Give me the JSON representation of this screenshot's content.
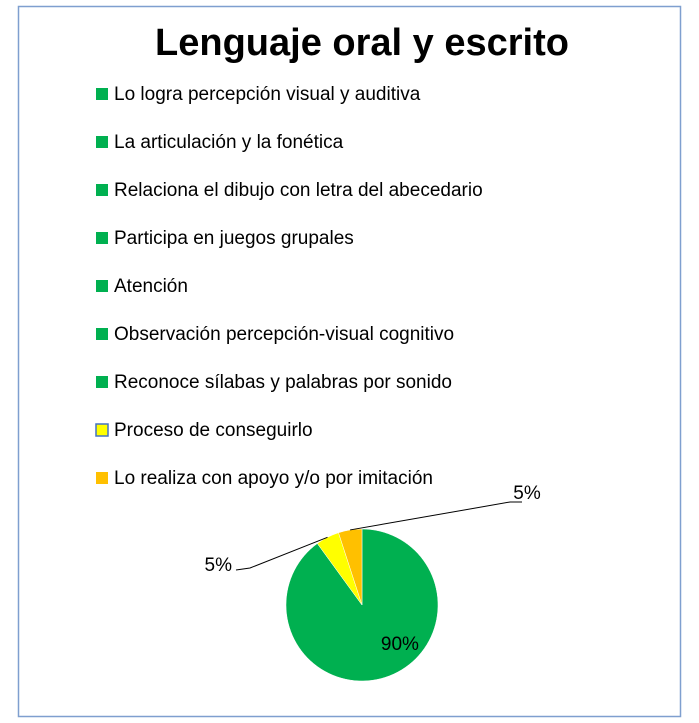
{
  "chart_data": {
    "type": "pie",
    "title": "Lenguaje oral y escrito",
    "categories": [
      "Lo logra percepción visual y auditiva",
      "La articulación y la fonética",
      "Relaciona el dibujo con letra del abecedario",
      "Participa en juegos grupales",
      "Atención",
      "Observación percepción-visual cognitivo",
      "Reconoce sílabas y palabras por sonido",
      "Proceso de conseguirlo",
      "Lo realiza con apoyo y/o por imitación"
    ],
    "values": [
      90,
      0,
      0,
      0,
      0,
      0,
      0,
      5,
      5
    ],
    "value_labels": [
      "90%",
      null,
      null,
      null,
      null,
      null,
      null,
      "5%",
      "5%"
    ],
    "colors": [
      "#00b050",
      "#00b050",
      "#00b050",
      "#00b050",
      "#00b050",
      "#00b050",
      "#00b050",
      "#ffff00",
      "#ffc000"
    ],
    "legend": "top"
  }
}
